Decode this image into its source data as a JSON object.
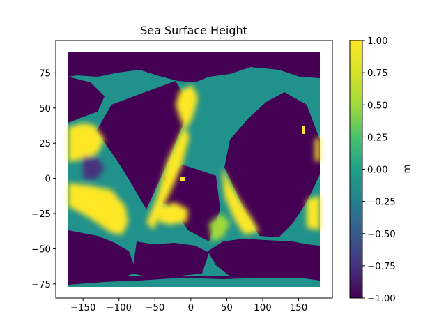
{
  "chart_data": {
    "type": "heatmap",
    "title": "Sea Surface Height",
    "xlabel": "",
    "ylabel": "",
    "xlim": [
      -188,
      197
    ],
    "ylim": [
      -85,
      98
    ],
    "data_extent_lon": [
      -180,
      180
    ],
    "data_extent_lat": [
      -78,
      90
    ],
    "x_ticks": [
      -150,
      -100,
      -50,
      0,
      50,
      100,
      150
    ],
    "x_tick_labels": [
      "−150",
      "−100",
      "−50",
      "0",
      "50",
      "100",
      "150"
    ],
    "y_ticks": [
      75,
      50,
      25,
      0,
      -25,
      -50,
      -75
    ],
    "y_tick_labels": [
      "75",
      "50",
      "25",
      "0",
      "−25",
      "−50",
      "−75"
    ],
    "colorbar": {
      "label": "m",
      "colormap": "viridis",
      "vmin": -1.0,
      "vmax": 1.0,
      "ticks": [
        1.0,
        0.75,
        0.5,
        0.25,
        0.0,
        -0.25,
        -0.5,
        -0.75,
        -1.0
      ],
      "tick_labels": [
        "1.00",
        "0.75",
        "0.50",
        "0.25",
        "0.00",
        "−0.25",
        "−0.50",
        "−0.75",
        "−1.00"
      ]
    },
    "grid": false,
    "colors": {
      "min": "#440154",
      "mid": "#21918c",
      "max": "#fde725",
      "axes_edge": "#000000"
    }
  }
}
